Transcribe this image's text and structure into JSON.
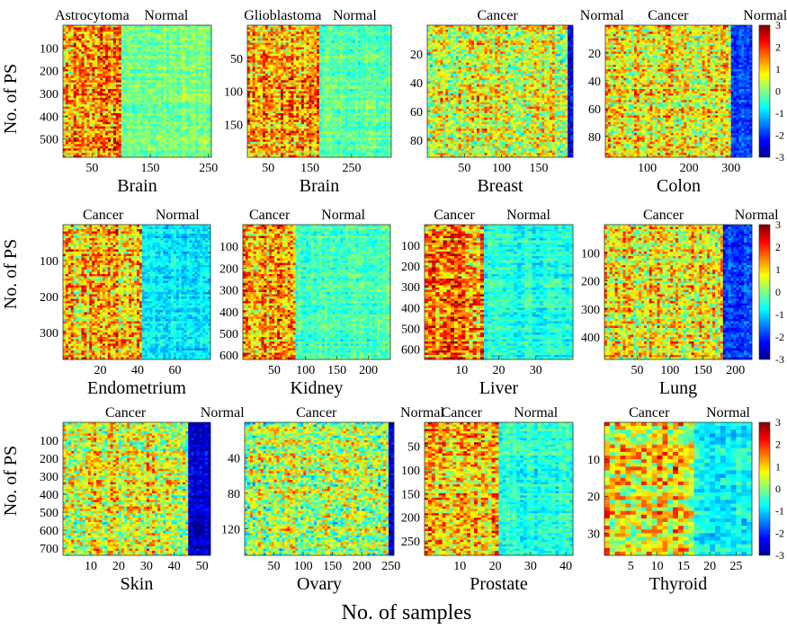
{
  "figure": {
    "ylabel": "No. of PS",
    "xlabel": "No. of samples"
  },
  "colorbar": {
    "ticks": [
      "3",
      "2",
      "1",
      "0",
      "-1",
      "-2",
      "-3"
    ],
    "colormap": "jet",
    "range": [
      -3,
      3
    ]
  },
  "chart_data": [
    {
      "type": "heatmap",
      "panel": "brain-astro",
      "group_labels": [
        "Astrocytoma",
        "Normal"
      ],
      "tissue": "Brain",
      "n_samples": 255,
      "n_cancer": 100,
      "n_ps": 580,
      "xticks": [
        50,
        150,
        250
      ],
      "yticks": [
        100,
        200,
        300,
        400,
        500
      ],
      "cancer_level": 1.4,
      "normal_level": 0.0
    },
    {
      "type": "heatmap",
      "panel": "brain-gbm",
      "group_labels": [
        "Glioblastoma",
        "Normal"
      ],
      "tissue": "Brain",
      "n_samples": 345,
      "n_cancer": 170,
      "n_ps": 200,
      "xticks": [
        50,
        150,
        250
      ],
      "yticks": [
        50,
        100,
        150
      ],
      "cancer_level": 1.3,
      "normal_level": -0.2
    },
    {
      "type": "heatmap",
      "panel": "breast",
      "group_labels": [
        "Cancer",
        "Normal"
      ],
      "tissue": "Breast",
      "n_samples": 196,
      "n_cancer": 189,
      "n_ps": 92,
      "xticks": [
        50,
        100,
        150
      ],
      "yticks": [
        20,
        40,
        60,
        80
      ],
      "cancer_level": 0.6,
      "normal_level": -2.4
    },
    {
      "type": "heatmap",
      "panel": "colon",
      "group_labels": [
        "Cancer",
        "Normal"
      ],
      "tissue": "Colon",
      "n_samples": 350,
      "n_cancer": 300,
      "n_ps": 95,
      "xticks": [
        100,
        200,
        300
      ],
      "yticks": [
        20,
        40,
        60,
        80
      ],
      "cancer_level": 0.7,
      "normal_level": -1.9
    },
    {
      "type": "heatmap",
      "panel": "endometrium",
      "group_labels": [
        "Cancer",
        "Normal"
      ],
      "tissue": "Endometrium",
      "n_samples": 79,
      "n_cancer": 43,
      "n_ps": 375,
      "xticks": [
        20,
        40,
        60
      ],
      "yticks": [
        100,
        200,
        300
      ],
      "cancer_level": 1.0,
      "normal_level": -0.9
    },
    {
      "type": "heatmap",
      "panel": "kidney",
      "group_labels": [
        "Cancer",
        "Normal"
      ],
      "tissue": "Kidney",
      "n_samples": 235,
      "n_cancer": 85,
      "n_ps": 620,
      "xticks": [
        50,
        100,
        150,
        200
      ],
      "yticks": [
        100,
        200,
        300,
        400,
        500,
        600
      ],
      "cancer_level": 1.3,
      "normal_level": -0.3
    },
    {
      "type": "heatmap",
      "panel": "liver",
      "group_labels": [
        "Cancer",
        "Normal"
      ],
      "tissue": "Liver",
      "n_samples": 40,
      "n_cancer": 16,
      "n_ps": 650,
      "xticks": [
        10,
        20,
        30
      ],
      "yticks": [
        100,
        200,
        300,
        400,
        500,
        600
      ],
      "cancer_level": 1.4,
      "normal_level": -0.6
    },
    {
      "type": "heatmap",
      "panel": "lung",
      "group_labels": [
        "Cancer",
        "Normal"
      ],
      "tissue": "Lung",
      "n_samples": 225,
      "n_cancer": 180,
      "n_ps": 480,
      "xticks": [
        50,
        100,
        150,
        200
      ],
      "yticks": [
        100,
        200,
        300,
        400
      ],
      "cancer_level": 0.7,
      "normal_level": -1.9
    },
    {
      "type": "heatmap",
      "panel": "skin",
      "group_labels": [
        "Cancer",
        "Normal"
      ],
      "tissue": "Skin",
      "n_samples": 53,
      "n_cancer": 45,
      "n_ps": 740,
      "xticks": [
        10,
        20,
        30,
        40,
        50
      ],
      "yticks": [
        100,
        200,
        300,
        400,
        500,
        600,
        700
      ],
      "cancer_level": 0.6,
      "normal_level": -2.5
    },
    {
      "type": "heatmap",
      "panel": "ovary",
      "group_labels": [
        "Cancer",
        "Normal"
      ],
      "tissue": "Ovary",
      "n_samples": 255,
      "n_cancer": 245,
      "n_ps": 150,
      "xticks": [
        50,
        100,
        150,
        200,
        250
      ],
      "yticks": [
        40,
        80,
        120
      ],
      "cancer_level": 0.3,
      "normal_level": -2.4
    },
    {
      "type": "heatmap",
      "panel": "prostate",
      "group_labels": [
        "Cancer",
        "Normal"
      ],
      "tissue": "Prostate",
      "n_samples": 42,
      "n_cancer": 21,
      "n_ps": 280,
      "xticks": [
        10,
        20,
        30,
        40
      ],
      "yticks": [
        50,
        100,
        150,
        200,
        250
      ],
      "cancer_level": 1.2,
      "normal_level": -0.5
    },
    {
      "type": "heatmap",
      "panel": "thyroid",
      "group_labels": [
        "Cancer",
        "Normal"
      ],
      "tissue": "Thyroid",
      "n_samples": 28,
      "n_cancer": 17,
      "n_ps": 36,
      "xticks": [
        5,
        10,
        15,
        20,
        25
      ],
      "yticks": [
        10,
        20,
        30
      ],
      "cancer_level": 0.9,
      "normal_level": -0.7
    }
  ]
}
